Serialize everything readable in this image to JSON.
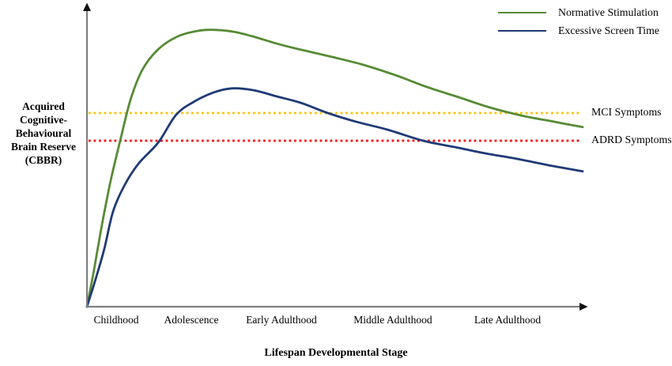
{
  "chart_data": {
    "type": "line",
    "title": "",
    "xlabel": "Lifespan Developmental Stage",
    "ylabel": "Acquired Cognitive-Behavioural Brain Reserve (CBBR)",
    "xlim": [
      0,
      100
    ],
    "ylim": [
      0,
      108
    ],
    "grid": false,
    "legend_position": "top-right",
    "x_tick_labels": [
      {
        "label": "Childhood",
        "x": 5.9
      },
      {
        "label": "Adolescence",
        "x": 21.1
      },
      {
        "label": "Early Adulthood",
        "x": 39.2
      },
      {
        "label": "Middle Adulthood",
        "x": 61.7
      },
      {
        "label": "Late Adulthood",
        "x": 84.9
      }
    ],
    "series": [
      {
        "name": "Normative Stimulation",
        "color": "#578b35",
        "x": [
          0,
          1.4,
          3.0,
          4.8,
          6.7,
          8.8,
          11.2,
          14.4,
          18.3,
          22.3,
          25.2,
          29.5,
          33.5,
          38.3,
          43.1,
          49.4,
          55.8,
          62.2,
          68.6,
          75.0,
          81.3,
          87.7,
          94.1,
          100
        ],
        "y": [
          0,
          13.1,
          29.4,
          45.7,
          60.0,
          74.9,
          85.7,
          93.1,
          97.7,
          99.7,
          100.1,
          99.4,
          97.7,
          95.1,
          92.9,
          90.3,
          87.4,
          83.7,
          79.4,
          75.7,
          72.0,
          69.1,
          66.9,
          64.9
        ]
      },
      {
        "name": "Excessive Screen Time",
        "color": "#1f3a76",
        "x": [
          0,
          1.8,
          3.5,
          5.3,
          7.7,
          10.4,
          14.4,
          18.0,
          21.5,
          25.5,
          29.2,
          33.5,
          38.3,
          43.1,
          48.6,
          54.2,
          60.6,
          67.8,
          74.2,
          80.5,
          86.9,
          93.3,
          100
        ],
        "y": [
          0,
          10.3,
          20.9,
          34.6,
          44.3,
          51.7,
          59.4,
          69.4,
          74.0,
          77.4,
          78.9,
          78.3,
          76.0,
          73.7,
          70.0,
          66.9,
          64.0,
          60.0,
          57.7,
          55.4,
          53.4,
          51.1,
          48.9
        ]
      }
    ],
    "thresholds": [
      {
        "label": "MCI Symptoms",
        "value": 70,
        "color": "#ffc000",
        "style": "dotted"
      },
      {
        "label": "ADRD Symptoms",
        "value": 60,
        "color": "#ff0000",
        "style": "dotted"
      }
    ],
    "axis_color": "#7f7f7f",
    "arrow_color": "#111111",
    "text_color": "#000000"
  }
}
